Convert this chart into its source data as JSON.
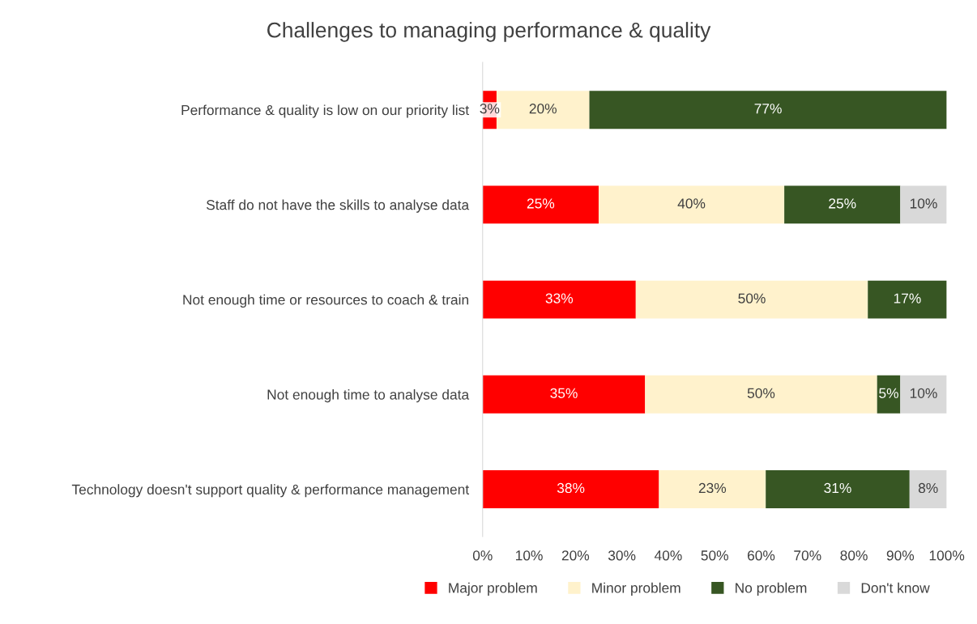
{
  "chart_data": {
    "type": "bar",
    "orientation": "horizontal",
    "stacked": true,
    "title": "Challenges to managing performance & quality",
    "categories": [
      "Performance & quality is low on our priority list",
      "Staff do not have the skills to analyse data",
      "Not enough time or resources to coach & train",
      "Not enough time to analyse data",
      "Technology doesn't support quality & performance management"
    ],
    "series": [
      {
        "name": "Major problem",
        "color": "#ff0000",
        "values": [
          3,
          25,
          33,
          35,
          38
        ],
        "value_labels": [
          "3%",
          "25%",
          "33%",
          "35%",
          "38%"
        ]
      },
      {
        "name": "Minor problem",
        "color": "#fff2cc",
        "values": [
          20,
          40,
          50,
          50,
          23
        ],
        "value_labels": [
          "20%",
          "40%",
          "50%",
          "50%",
          "23%"
        ]
      },
      {
        "name": "No problem",
        "color": "#375623",
        "values": [
          77,
          25,
          17,
          5,
          31
        ],
        "value_labels": [
          "77%",
          "25%",
          "17%",
          "5%",
          "31%"
        ]
      },
      {
        "name": "Don't know",
        "color": "#d9d9d9",
        "values": [
          null,
          10,
          null,
          10,
          8
        ],
        "value_labels": [
          null,
          "10%",
          null,
          "10%",
          "8%"
        ]
      }
    ],
    "xlim": [
      0,
      100
    ],
    "xticks": [
      {
        "value": 0,
        "label": "0%"
      },
      {
        "value": 10,
        "label": "10%"
      },
      {
        "value": 20,
        "label": "20%"
      },
      {
        "value": 30,
        "label": "30%"
      },
      {
        "value": 40,
        "label": "40%"
      },
      {
        "value": 50,
        "label": "50%"
      },
      {
        "value": 60,
        "label": "60%"
      },
      {
        "value": 70,
        "label": "70%"
      },
      {
        "value": 80,
        "label": "80%"
      },
      {
        "value": 90,
        "label": "90%"
      },
      {
        "value": 100,
        "label": "100%"
      }
    ],
    "grid": false,
    "legend": "bottom"
  }
}
